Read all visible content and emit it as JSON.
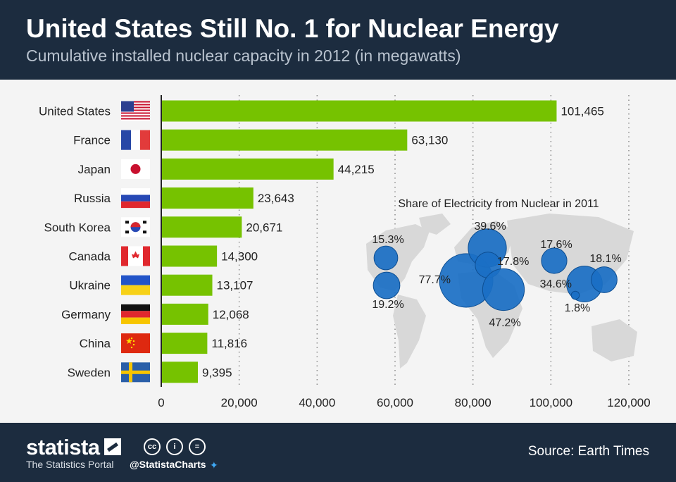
{
  "header": {
    "title": "United States Still No. 1 for Nuclear Energy",
    "subtitle": "Cumulative installed nuclear capacity in 2012 (in megawatts)"
  },
  "chart_data": [
    {
      "type": "bar",
      "orientation": "horizontal",
      "categories": [
        "United States",
        "France",
        "Japan",
        "Russia",
        "South Korea",
        "Canada",
        "Ukraine",
        "Germany",
        "China",
        "Sweden"
      ],
      "values": [
        101465,
        63130,
        44215,
        23643,
        20671,
        14300,
        13107,
        12068,
        11816,
        9395
      ],
      "value_labels": [
        "101,465",
        "63,130",
        "44,215",
        "23,643",
        "20,671",
        "14,300",
        "13,107",
        "12,068",
        "11,816",
        "9,395"
      ],
      "flags": [
        "us-flag",
        "france-flag",
        "japan-flag",
        "russia-flag",
        "south-korea-flag",
        "canada-flag",
        "ukraine-flag",
        "germany-flag",
        "china-flag",
        "sweden-flag"
      ],
      "xlim": [
        0,
        120000
      ],
      "xticks": [
        0,
        20000,
        40000,
        60000,
        80000,
        100000,
        120000
      ],
      "xtick_labels": [
        "0",
        "20,000",
        "40,000",
        "60,000",
        "80,000",
        "100,000",
        "120,000"
      ],
      "grid": "vertical-dotted",
      "bar_color": "#76c200"
    },
    {
      "type": "bubble-map",
      "title": "Share of Electricity from Nuclear in 2011",
      "bubble_color": "#1a6fc4",
      "points": [
        {
          "country": "Canada",
          "share": 15.3,
          "label": "15.3%"
        },
        {
          "country": "United States",
          "share": 19.2,
          "label": "19.2%"
        },
        {
          "country": "France",
          "share": 77.7,
          "label": "77.7%"
        },
        {
          "country": "Sweden",
          "share": 39.6,
          "label": "39.6%"
        },
        {
          "country": "Germany",
          "share": 17.8,
          "label": "17.8%"
        },
        {
          "country": "Ukraine",
          "share": 47.2,
          "label": "47.2%"
        },
        {
          "country": "Russia",
          "share": 17.6,
          "label": "17.6%"
        },
        {
          "country": "South Korea",
          "share": 34.6,
          "label": "34.6%"
        },
        {
          "country": "Japan",
          "share": 18.1,
          "label": "18.1%"
        },
        {
          "country": "China",
          "share": 1.8,
          "label": "1.8%"
        }
      ]
    }
  ],
  "footer": {
    "brand": "statista",
    "brand_sub": "The Statistics Portal",
    "handle": "@StatistaCharts",
    "source": "Source: Earth Times",
    "license_icons": [
      "cc-icon",
      "by-icon",
      "nd-icon"
    ]
  }
}
